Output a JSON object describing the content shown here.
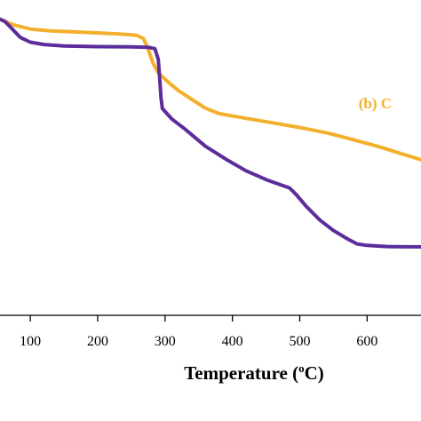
{
  "chart_data": {
    "type": "line",
    "xlabel_pre": "Temperature (",
    "xlabel_sup": "o",
    "xlabel_post": "C)",
    "ylabel": "",
    "xlim": [
      55,
      680
    ],
    "ylim": [
      0,
      100
    ],
    "xticks": [
      100,
      200,
      300,
      400,
      500,
      600
    ],
    "xtick_labels": [
      "100",
      "200",
      "300",
      "400",
      "500",
      "600"
    ],
    "grid": false,
    "annotations": [
      {
        "text": "(b) C",
        "x": 612,
        "y": 69.5,
        "color": "#F2B02C"
      }
    ],
    "series": [
      {
        "color": "#F2B02C",
        "points": [
          [
            55,
            99.5
          ],
          [
            75,
            97.6
          ],
          [
            100,
            96.2
          ],
          [
            130,
            95.6
          ],
          [
            180,
            95.1
          ],
          [
            230,
            94.6
          ],
          [
            258,
            94.1
          ],
          [
            268,
            93.0
          ],
          [
            275,
            89.5
          ],
          [
            282,
            84.8
          ],
          [
            290,
            81.5
          ],
          [
            305,
            78.3
          ],
          [
            320,
            75.5
          ],
          [
            340,
            72.5
          ],
          [
            360,
            69.6
          ],
          [
            380,
            67.8
          ],
          [
            420,
            66.2
          ],
          [
            460,
            64.7
          ],
          [
            500,
            63.1
          ],
          [
            540,
            61.3
          ],
          [
            580,
            59.0
          ],
          [
            620,
            56.5
          ],
          [
            650,
            54.4
          ],
          [
            680,
            52.3
          ]
        ]
      },
      {
        "color": "#5C2D9A",
        "points": [
          [
            55,
            99.5
          ],
          [
            62,
            98.8
          ],
          [
            72,
            96.5
          ],
          [
            85,
            93.4
          ],
          [
            100,
            91.8
          ],
          [
            120,
            91.0
          ],
          [
            150,
            90.5
          ],
          [
            200,
            90.3
          ],
          [
            250,
            90.2
          ],
          [
            275,
            90.1
          ],
          [
            285,
            89.6
          ],
          [
            290,
            86.0
          ],
          [
            292,
            80.0
          ],
          [
            294,
            73.0
          ],
          [
            296,
            69.5
          ],
          [
            310,
            66.0
          ],
          [
            330,
            62.5
          ],
          [
            360,
            56.8
          ],
          [
            390,
            52.5
          ],
          [
            420,
            48.6
          ],
          [
            450,
            45.6
          ],
          [
            470,
            44.0
          ],
          [
            485,
            42.8
          ],
          [
            495,
            40.5
          ],
          [
            510,
            36.5
          ],
          [
            530,
            32.0
          ],
          [
            550,
            28.5
          ],
          [
            570,
            25.8
          ],
          [
            585,
            24.0
          ],
          [
            600,
            23.5
          ],
          [
            630,
            23.1
          ],
          [
            660,
            23.0
          ],
          [
            680,
            23.0
          ]
        ]
      }
    ]
  }
}
